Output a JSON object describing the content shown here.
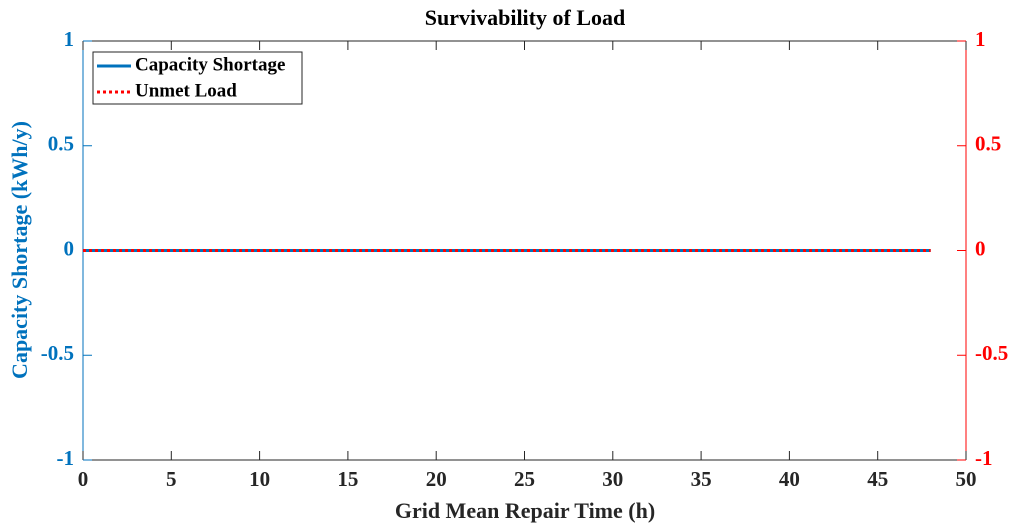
{
  "chart_data": {
    "type": "line",
    "title": "Survivability of Load",
    "x_label": "Grid Mean Repair Time (h)",
    "y_label": "Capacity Shortage (kWh/y)",
    "x": [
      0,
      4,
      8,
      12,
      16,
      20,
      24,
      28,
      32,
      36,
      40,
      44,
      48
    ],
    "series": [
      {
        "name": "Capacity Shortage",
        "color": "#0072bd",
        "style": "solid",
        "values": [
          0,
          0,
          0,
          0,
          0,
          0,
          0,
          0,
          0,
          0,
          0,
          0,
          0
        ]
      },
      {
        "name": "Unmet Load",
        "color": "#ff0000",
        "style": "dotted",
        "axis": "y2",
        "values": [
          0,
          0,
          0,
          0,
          0,
          0,
          0,
          0,
          0,
          0,
          0,
          0,
          0
        ]
      }
    ],
    "xlim": [
      0,
      50
    ],
    "xticks": [
      0,
      5,
      10,
      15,
      20,
      25,
      30,
      35,
      40,
      45,
      50
    ],
    "ylim": [
      -1,
      1
    ],
    "yticks": [
      -1,
      -0.5,
      0,
      0.5,
      1
    ],
    "y2lim": [
      -1,
      1
    ],
    "y2ticks": [
      -1,
      -0.5,
      0,
      0.5,
      1
    ],
    "legend": "top-left",
    "grid": false
  }
}
